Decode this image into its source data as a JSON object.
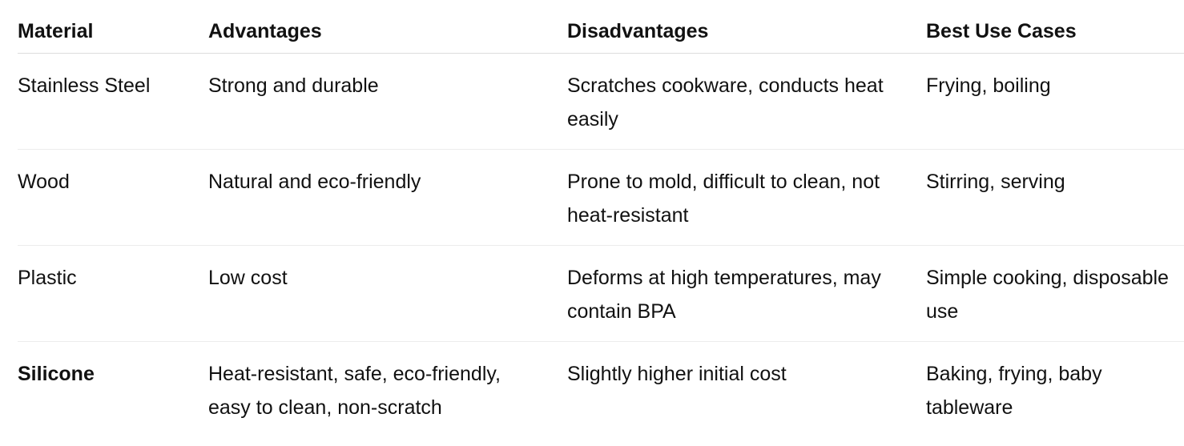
{
  "table": {
    "headers": [
      "Material",
      "Advantages",
      "Disadvantages",
      "Best Use Cases"
    ],
    "rows": [
      {
        "material": "Stainless Steel",
        "advantages": "Strong and durable",
        "disadvantages": "Scratches cookware, conducts heat easily",
        "best_use_cases": "Frying, boiling"
      },
      {
        "material": "Wood",
        "advantages": "Natural and eco-friendly",
        "disadvantages": "Prone to mold, difficult to clean, not heat-resistant",
        "best_use_cases": "Stirring, serving"
      },
      {
        "material": "Plastic",
        "advantages": "Low cost",
        "disadvantages": "Deforms at high temperatures, may contain BPA",
        "best_use_cases": "Simple cooking, disposable use"
      },
      {
        "material": "Silicone",
        "advantages": "Heat-resistant, safe, eco-friendly, easy to clean, non-scratch",
        "disadvantages": "Slightly higher initial cost",
        "best_use_cases": "Baking, frying, baby tableware"
      }
    ]
  }
}
